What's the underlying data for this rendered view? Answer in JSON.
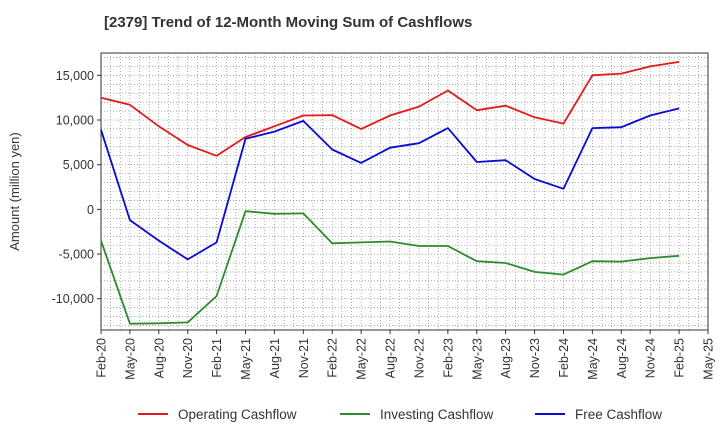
{
  "chart_data": {
    "type": "line",
    "title": "[2379]  Trend of 12-Month Moving Sum of Cashflows",
    "xlabel": "",
    "ylabel": "Amount (million yen)",
    "ylim": [
      -13500,
      17500
    ],
    "yticks": [
      -10000,
      -5000,
      0,
      5000,
      10000,
      15000
    ],
    "ytick_labels": [
      "-10,000",
      "-5,000",
      "0",
      "5,000",
      "10,000",
      "15,000"
    ],
    "x_tick_labels": [
      "Feb-20",
      "May-20",
      "Aug-20",
      "Nov-20",
      "Feb-21",
      "May-21",
      "Aug-21",
      "Nov-21",
      "Feb-22",
      "May-22",
      "Aug-22",
      "Nov-22",
      "Feb-23",
      "May-23",
      "Aug-23",
      "Nov-23",
      "Feb-24",
      "May-24",
      "Aug-24",
      "Nov-24",
      "Feb-25",
      "May-25"
    ],
    "categories": [
      "Feb-20",
      "May-20",
      "Aug-20",
      "Nov-20",
      "Feb-21",
      "May-21",
      "Aug-21",
      "Nov-21",
      "Feb-22",
      "May-22",
      "Aug-22",
      "Nov-22",
      "Feb-23",
      "May-23",
      "Aug-23",
      "Nov-23",
      "Feb-24",
      "May-24",
      "Aug-24",
      "Nov-24",
      "Feb-25"
    ],
    "grid": true,
    "legend_position": "bottom",
    "series": [
      {
        "name": "Operating Cashflow",
        "color": "#e31a1c",
        "values": [
          12500,
          11700,
          9300,
          7200,
          6000,
          8100,
          9300,
          10500,
          10550,
          9000,
          10500,
          11500,
          13300,
          11100,
          11600,
          10300,
          9600,
          15000,
          15200,
          16000,
          16500
        ]
      },
      {
        "name": "Investing Cashflow",
        "color": "#2e8b2e",
        "values": [
          -3500,
          -12800,
          -12750,
          -12650,
          -9700,
          -200,
          -500,
          -450,
          -3800,
          -3700,
          -3600,
          -4100,
          -4100,
          -5800,
          -6000,
          -7000,
          -7300,
          -5800,
          -5850,
          -5450,
          -5200
        ]
      },
      {
        "name": "Free Cashflow",
        "color": "#0a0ad6",
        "values": [
          8900,
          -1200,
          -3500,
          -5600,
          -3700,
          7900,
          8700,
          9900,
          6700,
          5200,
          6900,
          7400,
          9100,
          5300,
          5500,
          3400,
          2300,
          9100,
          9200,
          10500,
          11300
        ]
      }
    ]
  }
}
